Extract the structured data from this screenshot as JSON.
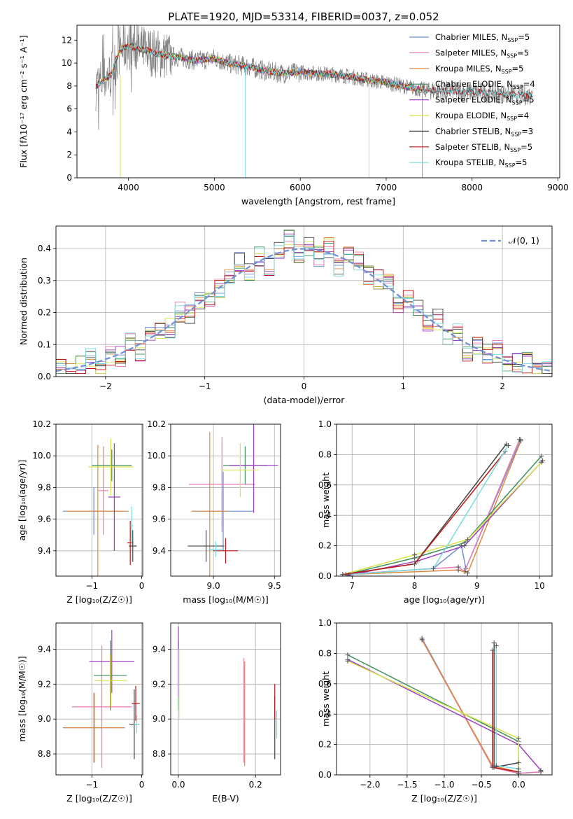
{
  "title": "PLATE=1920, MJD=53314, FIBERID=0037, z=0.052",
  "series_colors": [
    "#6f8fd7",
    "#e77fb3",
    "#e0893c",
    "#3f8f5c",
    "#9b3fc1",
    "#d8e44a",
    "#444444",
    "#c01616",
    "#79dbe0"
  ],
  "chart_data": [
    {
      "type": "line",
      "xlabel": "wavelength [Angstrom, rest frame]",
      "ylabel": "Flux [fλ10⁻¹⁷ erg cm⁻² s⁻¹ A⁻¹]",
      "xlim": [
        3400,
        9020
      ],
      "ylim": [
        0,
        13.3
      ],
      "xticks": [
        "4000",
        "5000",
        "6000",
        "7000",
        "8000",
        "9000"
      ],
      "yticks": [
        "0",
        "2",
        "4",
        "6",
        "8",
        "10",
        "12"
      ],
      "legend_position": "top-right",
      "series": [
        {
          "name": "Chabrier MILES, N",
          "sub": "SSP",
          "tail": "=5"
        },
        {
          "name": "Salpeter MILES, N",
          "sub": "SSP",
          "tail": "=5"
        },
        {
          "name": "Kroupa MILES, N",
          "sub": "SSP",
          "tail": "=5"
        },
        {
          "name": "Chabrier ELODIE, N",
          "sub": "SSP",
          "tail": "=4"
        },
        {
          "name": "Salpeter ELODIE, N",
          "sub": "SSP",
          "tail": "=5"
        },
        {
          "name": "Kroupa ELODIE, N",
          "sub": "SSP",
          "tail": "=4"
        },
        {
          "name": "Chabrier STELIB, N",
          "sub": "SSP",
          "tail": "=3"
        },
        {
          "name": "Salpeter STELIB, N",
          "sub": "SSP",
          "tail": "=5"
        },
        {
          "name": "Kroupa STELIB, N",
          "sub": "SSP",
          "tail": "=5"
        }
      ],
      "continuum": [
        [
          3620,
          8.0
        ],
        [
          3800,
          9.0
        ],
        [
          3900,
          11.2
        ],
        [
          4000,
          11.5
        ],
        [
          4200,
          11.1
        ],
        [
          4400,
          10.7
        ],
        [
          4600,
          10.5
        ],
        [
          4800,
          10.2
        ],
        [
          5000,
          10.4
        ],
        [
          5200,
          9.9
        ],
        [
          5400,
          9.7
        ],
        [
          5600,
          9.3
        ],
        [
          5800,
          9.1
        ],
        [
          6000,
          9.2
        ],
        [
          6200,
          9.1
        ],
        [
          6400,
          9.0
        ],
        [
          6600,
          8.8
        ],
        [
          6800,
          8.5
        ],
        [
          7000,
          8.3
        ],
        [
          7200,
          8.0
        ],
        [
          7400,
          7.7
        ],
        [
          7600,
          7.6
        ],
        [
          8000,
          7.5
        ],
        [
          8200,
          7.4
        ],
        [
          8400,
          7.3
        ],
        [
          8600,
          7.2
        ],
        [
          8700,
          7.2
        ]
      ],
      "models_end": 7420,
      "stelib_end": 8700
    },
    {
      "type": "histogram",
      "xlabel": "(data-model)/error",
      "ylabel": "Normed distribution",
      "xlim": [
        -2.5,
        2.5
      ],
      "ylim": [
        0,
        0.47
      ],
      "xticks": [
        "−2",
        "−1",
        "0",
        "1",
        "2"
      ],
      "yticks": [
        "0.0",
        "0.1",
        "0.2",
        "0.3",
        "0.4"
      ],
      "reference_curve": "𝒩(0, 1)",
      "reference_color": "#6f8fd7",
      "bin_edges": [
        -2.5,
        2.5
      ],
      "n_bins": 50,
      "noise": [
        [
          0.01,
          -0.01,
          0.0,
          0.02,
          -0.02,
          0.01,
          -0.01,
          0.02,
          -0.02,
          0.01,
          0.0,
          -0.01,
          0.02,
          -0.01,
          0.01,
          -0.02,
          0.0,
          0.01,
          0.04,
          -0.02,
          0.01,
          -0.03,
          0.0,
          0.03,
          -0.01,
          0.01,
          -0.02,
          0.02,
          -0.03,
          0.01,
          0.02,
          -0.01,
          0.0,
          0.02,
          -0.02,
          0.01,
          0.0,
          -0.01,
          0.02,
          -0.01,
          0.01,
          -0.02,
          0.01,
          0.0,
          0.02,
          -0.01,
          0.0,
          0.01,
          -0.01,
          0.01
        ]
      ]
    },
    {
      "type": "errorbar",
      "xlabel": "Z [log₁₀(Z/Z☉)]",
      "ylabel": "age  [log₁₀(age/yr)]",
      "xlim": [
        -1.72,
        0.02
      ],
      "ylim": [
        9.24,
        10.2
      ],
      "xticks": [
        "−1",
        "0"
      ],
      "yticks": [
        "9.4",
        "9.6",
        "9.8",
        "10.0",
        "10.2"
      ],
      "points": [
        {
          "x": -0.96,
          "xerr": 0.62,
          "y": 9.65,
          "yerr": 0.15
        },
        {
          "x": -0.77,
          "xerr": 0.1,
          "y": 9.78,
          "yerr": 0.28
        },
        {
          "x": -0.88,
          "xerr": 0.62,
          "y": 9.65,
          "yerr": 0.42
        },
        {
          "x": -0.6,
          "xerr": 0.4,
          "y": 9.94,
          "yerr": 0.1
        },
        {
          "x": -0.55,
          "xerr": 0.12,
          "y": 9.74,
          "yerr": 0.34
        },
        {
          "x": -0.62,
          "xerr": 0.45,
          "y": 9.93,
          "yerr": 0.18
        },
        {
          "x": -0.18,
          "xerr": 0.08,
          "y": 9.43,
          "yerr": 0.1
        },
        {
          "x": -0.23,
          "xerr": 0.06,
          "y": 9.45,
          "yerr": 0.14
        },
        {
          "x": -0.2,
          "xerr": 0.03,
          "y": 9.56,
          "yerr": 0.12
        }
      ]
    },
    {
      "type": "errorbar",
      "xlabel": "mass [log₁₀(M/M☉)]",
      "ylabel": "",
      "xlim": [
        8.65,
        9.55
      ],
      "ylim": [
        9.24,
        10.2
      ],
      "xticks": [
        "9.0",
        "9.5"
      ],
      "yticks": [
        "9.4",
        "9.6",
        "9.8",
        "10.0",
        "10.2"
      ],
      "points": [
        {
          "x": 9.08,
          "xerr": 0.25,
          "y": 9.65,
          "yerr": 0.25
        },
        {
          "x": 9.07,
          "xerr": 0.27,
          "y": 9.82,
          "yerr": 0.3
        },
        {
          "x": 8.97,
          "xerr": 0.15,
          "y": 9.65,
          "yerr": 0.5
        },
        {
          "x": 9.26,
          "xerr": 0.18,
          "y": 9.94,
          "yerr": 0.12
        },
        {
          "x": 9.33,
          "xerr": 0.2,
          "y": 9.94,
          "yerr": 0.3
        },
        {
          "x": 9.22,
          "xerr": 0.15,
          "y": 9.91,
          "yerr": 0.17
        },
        {
          "x": 8.94,
          "xerr": 0.15,
          "y": 9.43,
          "yerr": 0.1
        },
        {
          "x": 9.1,
          "xerr": 0.1,
          "y": 9.4,
          "yerr": 0.08
        },
        {
          "x": 9.02,
          "xerr": 0.06,
          "y": 9.41,
          "yerr": 0.05
        }
      ]
    },
    {
      "type": "line",
      "xlabel": "age  [log₁₀(age/yr)]",
      "ylabel": "mass weight",
      "xlim": [
        6.75,
        10.2
      ],
      "ylim": [
        0,
        1.0
      ],
      "xticks": [
        "7",
        "8",
        "9",
        "10"
      ],
      "yticks": [
        "0.0",
        "0.2",
        "0.4",
        "0.6",
        "0.8",
        "1.0"
      ],
      "series": [
        {
          "x": [
            6.85,
            8.3,
            8.75,
            8.82,
            9.7
          ],
          "y": [
            0.01,
            0.05,
            0.2,
            0.05,
            0.9
          ]
        },
        {
          "x": [
            6.85,
            8.7,
            8.8,
            9.68
          ],
          "y": [
            0.01,
            0.06,
            0.03,
            0.9
          ]
        },
        {
          "x": [
            6.9,
            8.7,
            8.85,
            9.7
          ],
          "y": [
            0.01,
            0.04,
            0.02,
            0.89
          ]
        },
        {
          "x": [
            6.9,
            8.0,
            8.8,
            10.03
          ],
          "y": [
            0.01,
            0.12,
            0.22,
            0.79
          ]
        },
        {
          "x": [
            6.9,
            8.05,
            8.8,
            10.05
          ],
          "y": [
            0.0,
            0.1,
            0.2,
            0.76
          ]
        },
        {
          "x": [
            6.85,
            8.0,
            8.85,
            10.03
          ],
          "y": [
            0.01,
            0.14,
            0.24,
            0.75
          ]
        },
        {
          "x": [
            6.85,
            8.0,
            9.47
          ],
          "y": [
            0.01,
            0.08,
            0.87
          ]
        },
        {
          "x": [
            6.85,
            8.0,
            9.45
          ],
          "y": [
            0.01,
            0.08,
            0.82
          ]
        },
        {
          "x": [
            6.95,
            8.3,
            9.5
          ],
          "y": [
            0.01,
            0.05,
            0.86
          ]
        }
      ]
    },
    {
      "type": "errorbar",
      "xlabel": "Z [log₁₀(Z/Z☉)]",
      "ylabel": "mass [log₁₀(M/M☉)]",
      "xlim": [
        -1.72,
        0.02
      ],
      "ylim": [
        8.68,
        9.55
      ],
      "xticks": [
        "−1",
        "0"
      ],
      "yticks": [
        "8.8",
        "9.0",
        "9.2",
        "9.4"
      ],
      "points": [
        {
          "x": -0.96,
          "xerr": 0.62,
          "y": 8.95,
          "yerr": 0.2
        },
        {
          "x": -0.8,
          "xerr": 0.6,
          "y": 9.07,
          "yerr": 0.35
        },
        {
          "x": -0.95,
          "xerr": 0.6,
          "y": 8.95,
          "yerr": 0.2
        },
        {
          "x": -0.63,
          "xerr": 0.33,
          "y": 9.25,
          "yerr": 0.2
        },
        {
          "x": -0.6,
          "xerr": 0.45,
          "y": 9.33,
          "yerr": 0.18
        },
        {
          "x": -0.62,
          "xerr": 0.33,
          "y": 9.22,
          "yerr": 0.15
        },
        {
          "x": -0.15,
          "xerr": 0.1,
          "y": 8.97,
          "yerr": 0.2
        },
        {
          "x": -0.12,
          "xerr": 0.08,
          "y": 9.09,
          "yerr": 0.1
        },
        {
          "x": -0.1,
          "xerr": 0.06,
          "y": 8.97,
          "yerr": 0.05
        }
      ]
    },
    {
      "type": "errorbar",
      "xlabel": "E(B-V)",
      "ylabel": "",
      "xlim": [
        -0.02,
        0.265
      ],
      "ylim": [
        8.68,
        9.55
      ],
      "xticks": [
        "0.0",
        "0.2"
      ],
      "yticks": [
        "8.8",
        "9.0",
        "9.2",
        "9.4"
      ],
      "points": [
        {
          "x": 0.001,
          "xerr": 0.0,
          "y": 9.2,
          "yerr": 0.2
        },
        {
          "x": 0.17,
          "xerr": 0.0,
          "y": 9.05,
          "yerr": 0.3
        },
        {
          "x": 0.172,
          "xerr": 0.0,
          "y": 9.03,
          "yerr": 0.3
        },
        {
          "x": 0.0,
          "xerr": 0.0,
          "y": 9.25,
          "yerr": 0.2
        },
        {
          "x": 0.0,
          "xerr": 0.0,
          "y": 9.33,
          "yerr": 0.2
        },
        {
          "x": 0.001,
          "xerr": 0.0,
          "y": 9.2,
          "yerr": 0.2
        },
        {
          "x": 0.25,
          "xerr": 0.0,
          "y": 8.95,
          "yerr": 0.18
        },
        {
          "x": 0.25,
          "xerr": 0.0,
          "y": 9.1,
          "yerr": 0.1
        },
        {
          "x": 0.255,
          "xerr": 0.0,
          "y": 8.97,
          "yerr": 0.08
        }
      ]
    },
    {
      "type": "line",
      "xlabel": "Z [log₁₀(Z/Z☉)]",
      "ylabel": "mass weight",
      "xlim": [
        -2.45,
        0.45
      ],
      "ylim": [
        0,
        1.0
      ],
      "xticks": [
        "−2.0",
        "−1.5",
        "−1.0",
        "−0.5",
        "0.0"
      ],
      "yticks": [
        "0.0",
        "0.2",
        "0.4",
        "0.6",
        "0.8",
        "1.0"
      ],
      "series": [
        {
          "x": [
            -1.3,
            -0.35,
            0.0,
            0.3
          ],
          "y": [
            0.9,
            0.05,
            0.01,
            0.02
          ]
        },
        {
          "x": [
            -1.3,
            -0.35,
            0.0,
            0.3
          ],
          "y": [
            0.89,
            0.05,
            0.01,
            0.02
          ]
        },
        {
          "x": [
            -1.3,
            -0.35,
            0.0
          ],
          "y": [
            0.89,
            0.06,
            0.02
          ]
        },
        {
          "x": [
            -2.3,
            0.0,
            0.0
          ],
          "y": [
            0.79,
            0.22,
            0.0
          ]
        },
        {
          "x": [
            -2.3,
            0.0,
            0.3
          ],
          "y": [
            0.76,
            0.2,
            0.03
          ]
        },
        {
          "x": [
            -2.3,
            0.0,
            0.0
          ],
          "y": [
            0.75,
            0.24,
            0.01
          ]
        },
        {
          "x": [
            -0.33,
            -0.33,
            0.0
          ],
          "y": [
            0.87,
            0.05,
            0.08
          ]
        },
        {
          "x": [
            -0.35,
            -0.35,
            0.0
          ],
          "y": [
            0.82,
            0.05,
            0.02
          ]
        },
        {
          "x": [
            -0.3,
            -0.3,
            0.0
          ],
          "y": [
            0.85,
            0.06,
            0.04
          ]
        }
      ]
    }
  ]
}
